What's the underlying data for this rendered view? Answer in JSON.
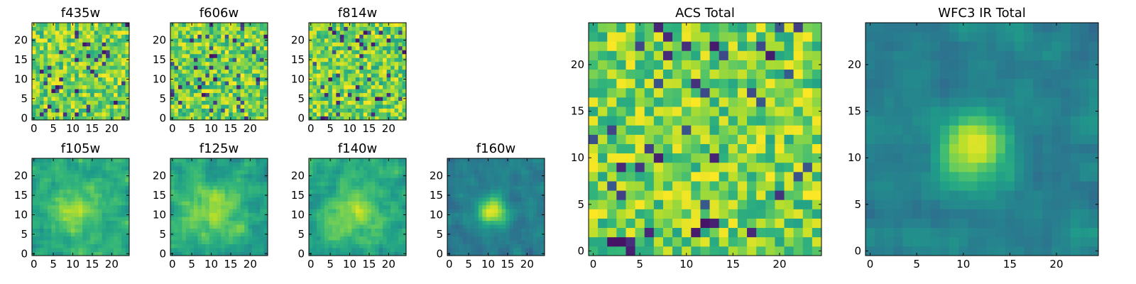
{
  "chart_data": [
    {
      "type": "heatmap",
      "title": "f435w",
      "xticks": [
        "0",
        "5",
        "10",
        "15",
        "20"
      ],
      "yticks": [
        "0",
        "5",
        "10",
        "15",
        "20"
      ],
      "xlim": [
        -0.5,
        24.5
      ],
      "ylim": [
        -0.5,
        24.5
      ],
      "grid": 25,
      "cmap": "viridis",
      "pattern": "noise",
      "seed": 11
    },
    {
      "type": "heatmap",
      "title": "f606w",
      "xticks": [
        "0",
        "5",
        "10",
        "15",
        "20"
      ],
      "yticks": [
        "0",
        "5",
        "10",
        "15",
        "20"
      ],
      "xlim": [
        -0.5,
        24.5
      ],
      "ylim": [
        -0.5,
        24.5
      ],
      "grid": 25,
      "cmap": "viridis",
      "pattern": "noise",
      "seed": 23
    },
    {
      "type": "heatmap",
      "title": "f814w",
      "xticks": [
        "0",
        "5",
        "10",
        "15",
        "20"
      ],
      "yticks": [
        "0",
        "5",
        "10",
        "15",
        "20"
      ],
      "xlim": [
        -0.5,
        24.5
      ],
      "ylim": [
        -0.5,
        24.5
      ],
      "grid": 25,
      "cmap": "viridis",
      "pattern": "noise",
      "seed": 37
    },
    {
      "type": "heatmap",
      "title": "f105w",
      "xticks": [
        "0",
        "5",
        "10",
        "15",
        "20"
      ],
      "yticks": [
        "0",
        "5",
        "10",
        "15",
        "20"
      ],
      "xlim": [
        -0.5,
        24.5
      ],
      "ylim": [
        -0.5,
        24.5
      ],
      "grid": 25,
      "cmap": "viridis",
      "pattern": "smooth",
      "seed": 41
    },
    {
      "type": "heatmap",
      "title": "f125w",
      "xticks": [
        "0",
        "5",
        "10",
        "15",
        "20"
      ],
      "yticks": [
        "0",
        "5",
        "10",
        "15",
        "20"
      ],
      "xlim": [
        -0.5,
        24.5
      ],
      "ylim": [
        -0.5,
        24.5
      ],
      "grid": 25,
      "cmap": "viridis",
      "pattern": "smooth",
      "seed": 53
    },
    {
      "type": "heatmap",
      "title": "f140w",
      "xticks": [
        "0",
        "5",
        "10",
        "15",
        "20"
      ],
      "yticks": [
        "0",
        "5",
        "10",
        "15",
        "20"
      ],
      "xlim": [
        -0.5,
        24.5
      ],
      "ylim": [
        -0.5,
        24.5
      ],
      "grid": 25,
      "cmap": "viridis",
      "pattern": "smooth",
      "seed": 67
    },
    {
      "type": "heatmap",
      "title": "f160w",
      "xticks": [
        "0",
        "5",
        "10",
        "15",
        "20"
      ],
      "yticks": [
        "0",
        "5",
        "10",
        "15",
        "20"
      ],
      "xlim": [
        -0.5,
        24.5
      ],
      "ylim": [
        -0.5,
        24.5
      ],
      "grid": 25,
      "cmap": "viridis",
      "pattern": "source",
      "seed": 79
    },
    {
      "type": "heatmap",
      "title": "ACS Total",
      "xticks": [
        "0",
        "5",
        "10",
        "15",
        "20"
      ],
      "yticks": [
        "0",
        "5",
        "10",
        "15",
        "20"
      ],
      "xlim": [
        -0.5,
        24.5
      ],
      "ylim": [
        -0.5,
        24.5
      ],
      "grid": 25,
      "cmap": "viridis",
      "pattern": "noise",
      "seed": 97
    },
    {
      "type": "heatmap",
      "title": "WFC3 IR Total",
      "xticks": [
        "0",
        "5",
        "10",
        "15",
        "20"
      ],
      "yticks": [
        "0",
        "5",
        "10",
        "15",
        "20"
      ],
      "xlim": [
        -0.5,
        24.5
      ],
      "ylim": [
        -0.5,
        24.5
      ],
      "grid": 25,
      "cmap": "viridis",
      "pattern": "source",
      "seed": 103
    }
  ],
  "colors": {
    "background": "#ffffff",
    "axis": "#000000"
  }
}
